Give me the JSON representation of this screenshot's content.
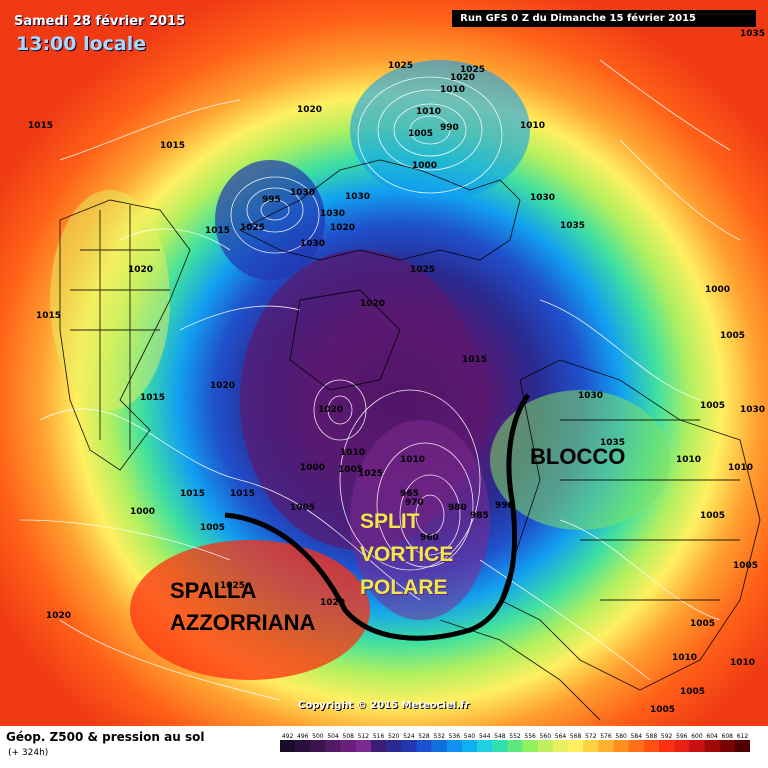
{
  "header": {
    "date": "Samedi 28 février 2015",
    "local_time": "13:00 locale",
    "run_info": "Run GFS 0 Z du Dimanche 15 février 2015"
  },
  "footer": {
    "title": "Géop. Z500 & pression au sol",
    "lead": "(+ 324h)",
    "copyright": "Copyright © 2015 Meteociel.fr"
  },
  "scale": {
    "values": [
      "492",
      "496",
      "500",
      "504",
      "508",
      "512",
      "516",
      "520",
      "524",
      "528",
      "532",
      "536",
      "540",
      "544",
      "548",
      "552",
      "556",
      "560",
      "564",
      "568",
      "572",
      "576",
      "580",
      "584",
      "588",
      "592",
      "596",
      "600",
      "604",
      "608",
      "612"
    ],
    "colors": [
      "#1a0a2a",
      "#2b0f3e",
      "#3d1452",
      "#521a66",
      "#6a1f7a",
      "#7c2a90",
      "#3a1e78",
      "#2a2a90",
      "#2236b0",
      "#1c50d0",
      "#1070e0",
      "#1090f0",
      "#10b0f0",
      "#20d0e0",
      "#30e0b0",
      "#60e880",
      "#90f060",
      "#c0f060",
      "#e8f060",
      "#fff060",
      "#ffd040",
      "#ffb030",
      "#ff9020",
      "#ff7018",
      "#ff5014",
      "#ff3010",
      "#e82010",
      "#c81010",
      "#a00808",
      "#780404",
      "#500000"
    ]
  },
  "annotations": {
    "blocco": "BLOCCO",
    "split": [
      "SPLIT",
      "VORTICE",
      "POLARE"
    ],
    "spall": [
      "SPALLA",
      "AZZORRIANA"
    ]
  },
  "pressure_labels": [
    "1025",
    "1020",
    "1015",
    "1015",
    "1010",
    "1010",
    "1010",
    "1030",
    "1035",
    "1030",
    "1025",
    "1020",
    "1015",
    "1015",
    "1020",
    "1030",
    "1030",
    "1025",
    "1035",
    "1030",
    "1020",
    "1035",
    "1030",
    "1010",
    "1000",
    "1005",
    "1005",
    "1010",
    "1005",
    "1005",
    "1020",
    "1020",
    "1025",
    "1010",
    "995",
    "990",
    "1005",
    "1000",
    "1015",
    "1015",
    "1015",
    "1000",
    "1005",
    "1020",
    "1025",
    "1020",
    "965",
    "960",
    "970",
    "980",
    "985",
    "990",
    "1000",
    "1010",
    "1005",
    "1005",
    "1010",
    "1025",
    "1030",
    "1005",
    "1005",
    "1015",
    "1010",
    "1005",
    "1020"
  ],
  "colors": {
    "vortex_core": "#2a0a3a",
    "high_pressure": "#ff3010",
    "ridge": "#ffd040"
  }
}
